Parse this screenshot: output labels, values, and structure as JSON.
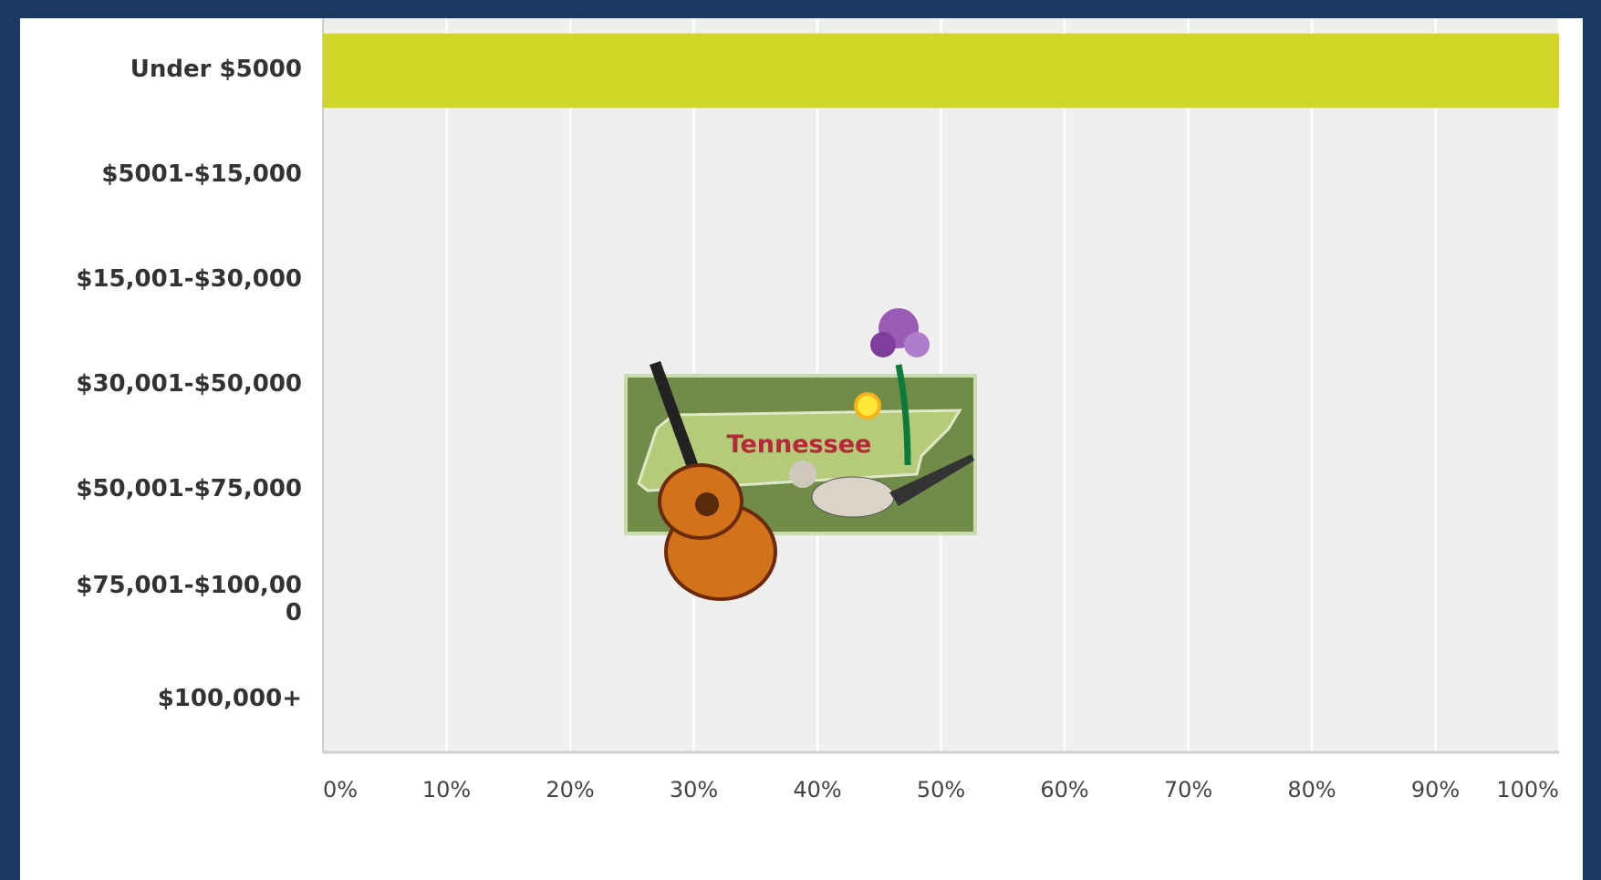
{
  "chart_data": {
    "type": "bar",
    "orientation": "horizontal",
    "categories": [
      "Under $5000",
      "$5001-$15,000",
      "$15,001-$30,000",
      "$30,001-$50,000",
      "$50,001-$75,000",
      "$75,001-$100,000",
      "$100,000+"
    ],
    "values": [
      100,
      0,
      0,
      0,
      0,
      0,
      0
    ],
    "color": "#cfd628",
    "xlim": [
      0,
      100
    ],
    "xticks": [
      {
        "value": 0,
        "label": "0%"
      },
      {
        "value": 10,
        "label": "10%"
      },
      {
        "value": 20,
        "label": "20%"
      },
      {
        "value": 30,
        "label": "30%"
      },
      {
        "value": 40,
        "label": "40%"
      },
      {
        "value": 50,
        "label": "50%"
      },
      {
        "value": 60,
        "label": "60%"
      },
      {
        "value": 70,
        "label": "70%"
      },
      {
        "value": 80,
        "label": "80%"
      },
      {
        "value": 90,
        "label": "90%"
      },
      {
        "value": 100,
        "label": "100%"
      }
    ],
    "grid": true
  },
  "illustration": {
    "label": "Tennessee"
  }
}
